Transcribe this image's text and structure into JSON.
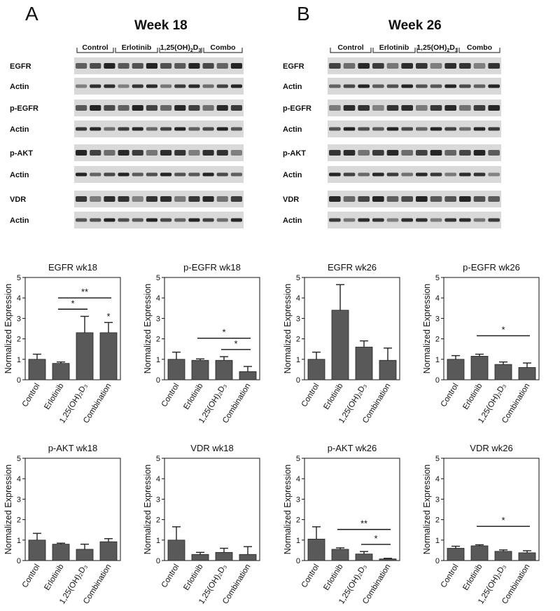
{
  "panels": [
    {
      "letter": "A",
      "title": "Week 18",
      "groups": [
        "Control",
        "Erlotinib",
        "1,25(OH)",
        "Combo"
      ],
      "rows": [
        "EGFR",
        "Actin",
        "p-EGFR",
        "Actin",
        "p-AKT",
        "Actin",
        "VDR",
        "Actin"
      ]
    },
    {
      "letter": "B",
      "title": "Week 26",
      "groups": [
        "Control",
        "Erlotinib",
        "1,25(OH)",
        "Combo"
      ],
      "rows": [
        "EGFR",
        "Actin",
        "p-EGFR",
        "Actin",
        "p-AKT",
        "Actin",
        "VDR",
        "Actin"
      ]
    }
  ],
  "group_subscript": {
    "a": "2",
    "b": "D",
    "c": "3"
  },
  "blot_style": {
    "band_color": "#1a1a1a",
    "lane_bg": "#d9d9d9"
  },
  "bar_color": "#595959",
  "chart_data": [
    {
      "type": "bar",
      "title": "EGFR wk18",
      "categories": [
        "Control",
        "Erlotinib",
        "1,25(OH)₂D₃",
        "Combination"
      ],
      "values": [
        1.0,
        0.8,
        2.3,
        2.3
      ],
      "errors": [
        0.25,
        0.07,
        0.8,
        0.5
      ],
      "ylabel": "Normalized  Expression",
      "ylim": [
        0,
        5
      ],
      "yticks": [
        "0",
        "1",
        "2",
        "3",
        "4",
        "5"
      ],
      "significance": [
        {
          "from": 1,
          "to": 2,
          "label": "*"
        },
        {
          "from": 1,
          "to": 3,
          "label": "**"
        },
        {
          "over": 3,
          "label": "*"
        }
      ]
    },
    {
      "type": "bar",
      "title": "p-EGFR wk18",
      "categories": [
        "Control",
        "Erlotinib",
        "1,25(OH)₂D₃",
        "Combination"
      ],
      "values": [
        1.0,
        0.95,
        0.95,
        0.4
      ],
      "errors": [
        0.35,
        0.07,
        0.18,
        0.25
      ],
      "ylabel": "Normalized  Expression",
      "ylim": [
        0,
        5
      ],
      "yticks": [
        "0",
        "1",
        "2",
        "3",
        "4",
        "5"
      ],
      "significance": [
        {
          "from": 1,
          "to": 3,
          "label": "*"
        },
        {
          "from": 2,
          "to": 3,
          "label": "*"
        }
      ]
    },
    {
      "type": "bar",
      "title": "EGFR wk26",
      "categories": [
        "Control",
        "Erlotinib",
        "1,25(OH)₂D₃",
        "Combination"
      ],
      "values": [
        1.0,
        3.4,
        1.6,
        0.95
      ],
      "errors": [
        0.35,
        1.25,
        0.3,
        0.6
      ],
      "ylabel": "Normalized  Expression",
      "ylim": [
        0,
        5
      ],
      "yticks": [
        "0",
        "1",
        "2",
        "3",
        "4",
        "5"
      ],
      "significance": []
    },
    {
      "type": "bar",
      "title": "p-EGFR wk26",
      "categories": [
        "Control",
        "Erlotinib",
        "1,25(OH)₂D₃",
        "Combination"
      ],
      "values": [
        1.0,
        1.15,
        0.75,
        0.6
      ],
      "errors": [
        0.18,
        0.1,
        0.12,
        0.22
      ],
      "ylabel": "Normalized  Expression",
      "ylim": [
        0,
        5
      ],
      "yticks": [
        "0",
        "1",
        "2",
        "3",
        "4",
        "5"
      ],
      "significance": [
        {
          "from": 1,
          "to": 3,
          "label": "*"
        }
      ]
    },
    {
      "type": "bar",
      "title": "p-AKT wk18",
      "categories": [
        "Control",
        "Erlotinib",
        "1,25(OH)₂D₃",
        "Combination"
      ],
      "values": [
        1.0,
        0.8,
        0.55,
        0.92
      ],
      "errors": [
        0.33,
        0.05,
        0.25,
        0.15
      ],
      "ylabel": "Normalized  Expression",
      "ylim": [
        0,
        5
      ],
      "yticks": [
        "0",
        "1",
        "2",
        "3",
        "4",
        "5"
      ],
      "significance": []
    },
    {
      "type": "bar",
      "title": "VDR wk18",
      "categories": [
        "Control",
        "Erlotinib",
        "1,25(OH)₂D₃",
        "Combination"
      ],
      "values": [
        1.0,
        0.3,
        0.4,
        0.3
      ],
      "errors": [
        0.65,
        0.1,
        0.2,
        0.38
      ],
      "ylabel": "Normalized  Expression",
      "ylim": [
        0,
        5
      ],
      "yticks": [
        "0",
        "1",
        "2",
        "3",
        "4",
        "5"
      ],
      "significance": []
    },
    {
      "type": "bar",
      "title": "p-AKT wk26",
      "categories": [
        "Control",
        "Erlotinib",
        "1,25(OH)₂D₃",
        "Combination"
      ],
      "values": [
        1.05,
        0.55,
        0.32,
        0.08
      ],
      "errors": [
        0.6,
        0.07,
        0.12,
        0.03
      ],
      "ylabel": "Normalized  Expression",
      "ylim": [
        0,
        5
      ],
      "yticks": [
        "0",
        "1",
        "2",
        "3",
        "4",
        "5"
      ],
      "significance": [
        {
          "from": 1,
          "to": 3,
          "label": "**"
        },
        {
          "from": 2,
          "to": 3,
          "label": "*"
        }
      ]
    },
    {
      "type": "bar",
      "title": "VDR wk26",
      "categories": [
        "Control",
        "Erlotinib",
        "1,25(OH)₂D₃",
        "Combination"
      ],
      "values": [
        0.6,
        0.72,
        0.45,
        0.38
      ],
      "errors": [
        0.1,
        0.05,
        0.07,
        0.1
      ],
      "ylabel": "Normalized  Expression",
      "ylim": [
        0,
        5
      ],
      "yticks": [
        "0",
        "1",
        "2",
        "3",
        "4",
        "5"
      ],
      "significance": [
        {
          "from": 1,
          "to": 3,
          "label": "*"
        }
      ]
    }
  ]
}
